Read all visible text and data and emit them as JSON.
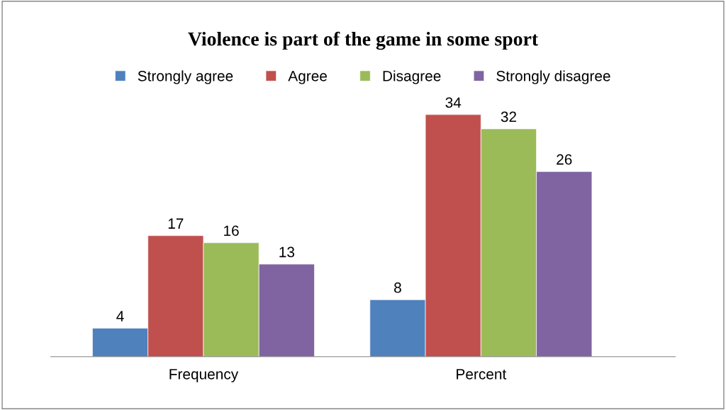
{
  "chart_data": {
    "type": "bar",
    "title": "Violence is part of the game in some sport",
    "categories": [
      "Frequency",
      "Percent"
    ],
    "series": [
      {
        "name": "Strongly agree",
        "color": "#4f81bd",
        "values": [
          4,
          8
        ]
      },
      {
        "name": "Agree",
        "color": "#c0504d",
        "values": [
          17,
          34
        ]
      },
      {
        "name": "Disagree",
        "color": "#9bbb59",
        "values": [
          16,
          32
        ]
      },
      {
        "name": "Strongly disagree",
        "color": "#8064a2",
        "values": [
          13,
          26
        ]
      }
    ],
    "data_labels": true,
    "legend": "top",
    "grid": false,
    "tick_labels": "x"
  }
}
